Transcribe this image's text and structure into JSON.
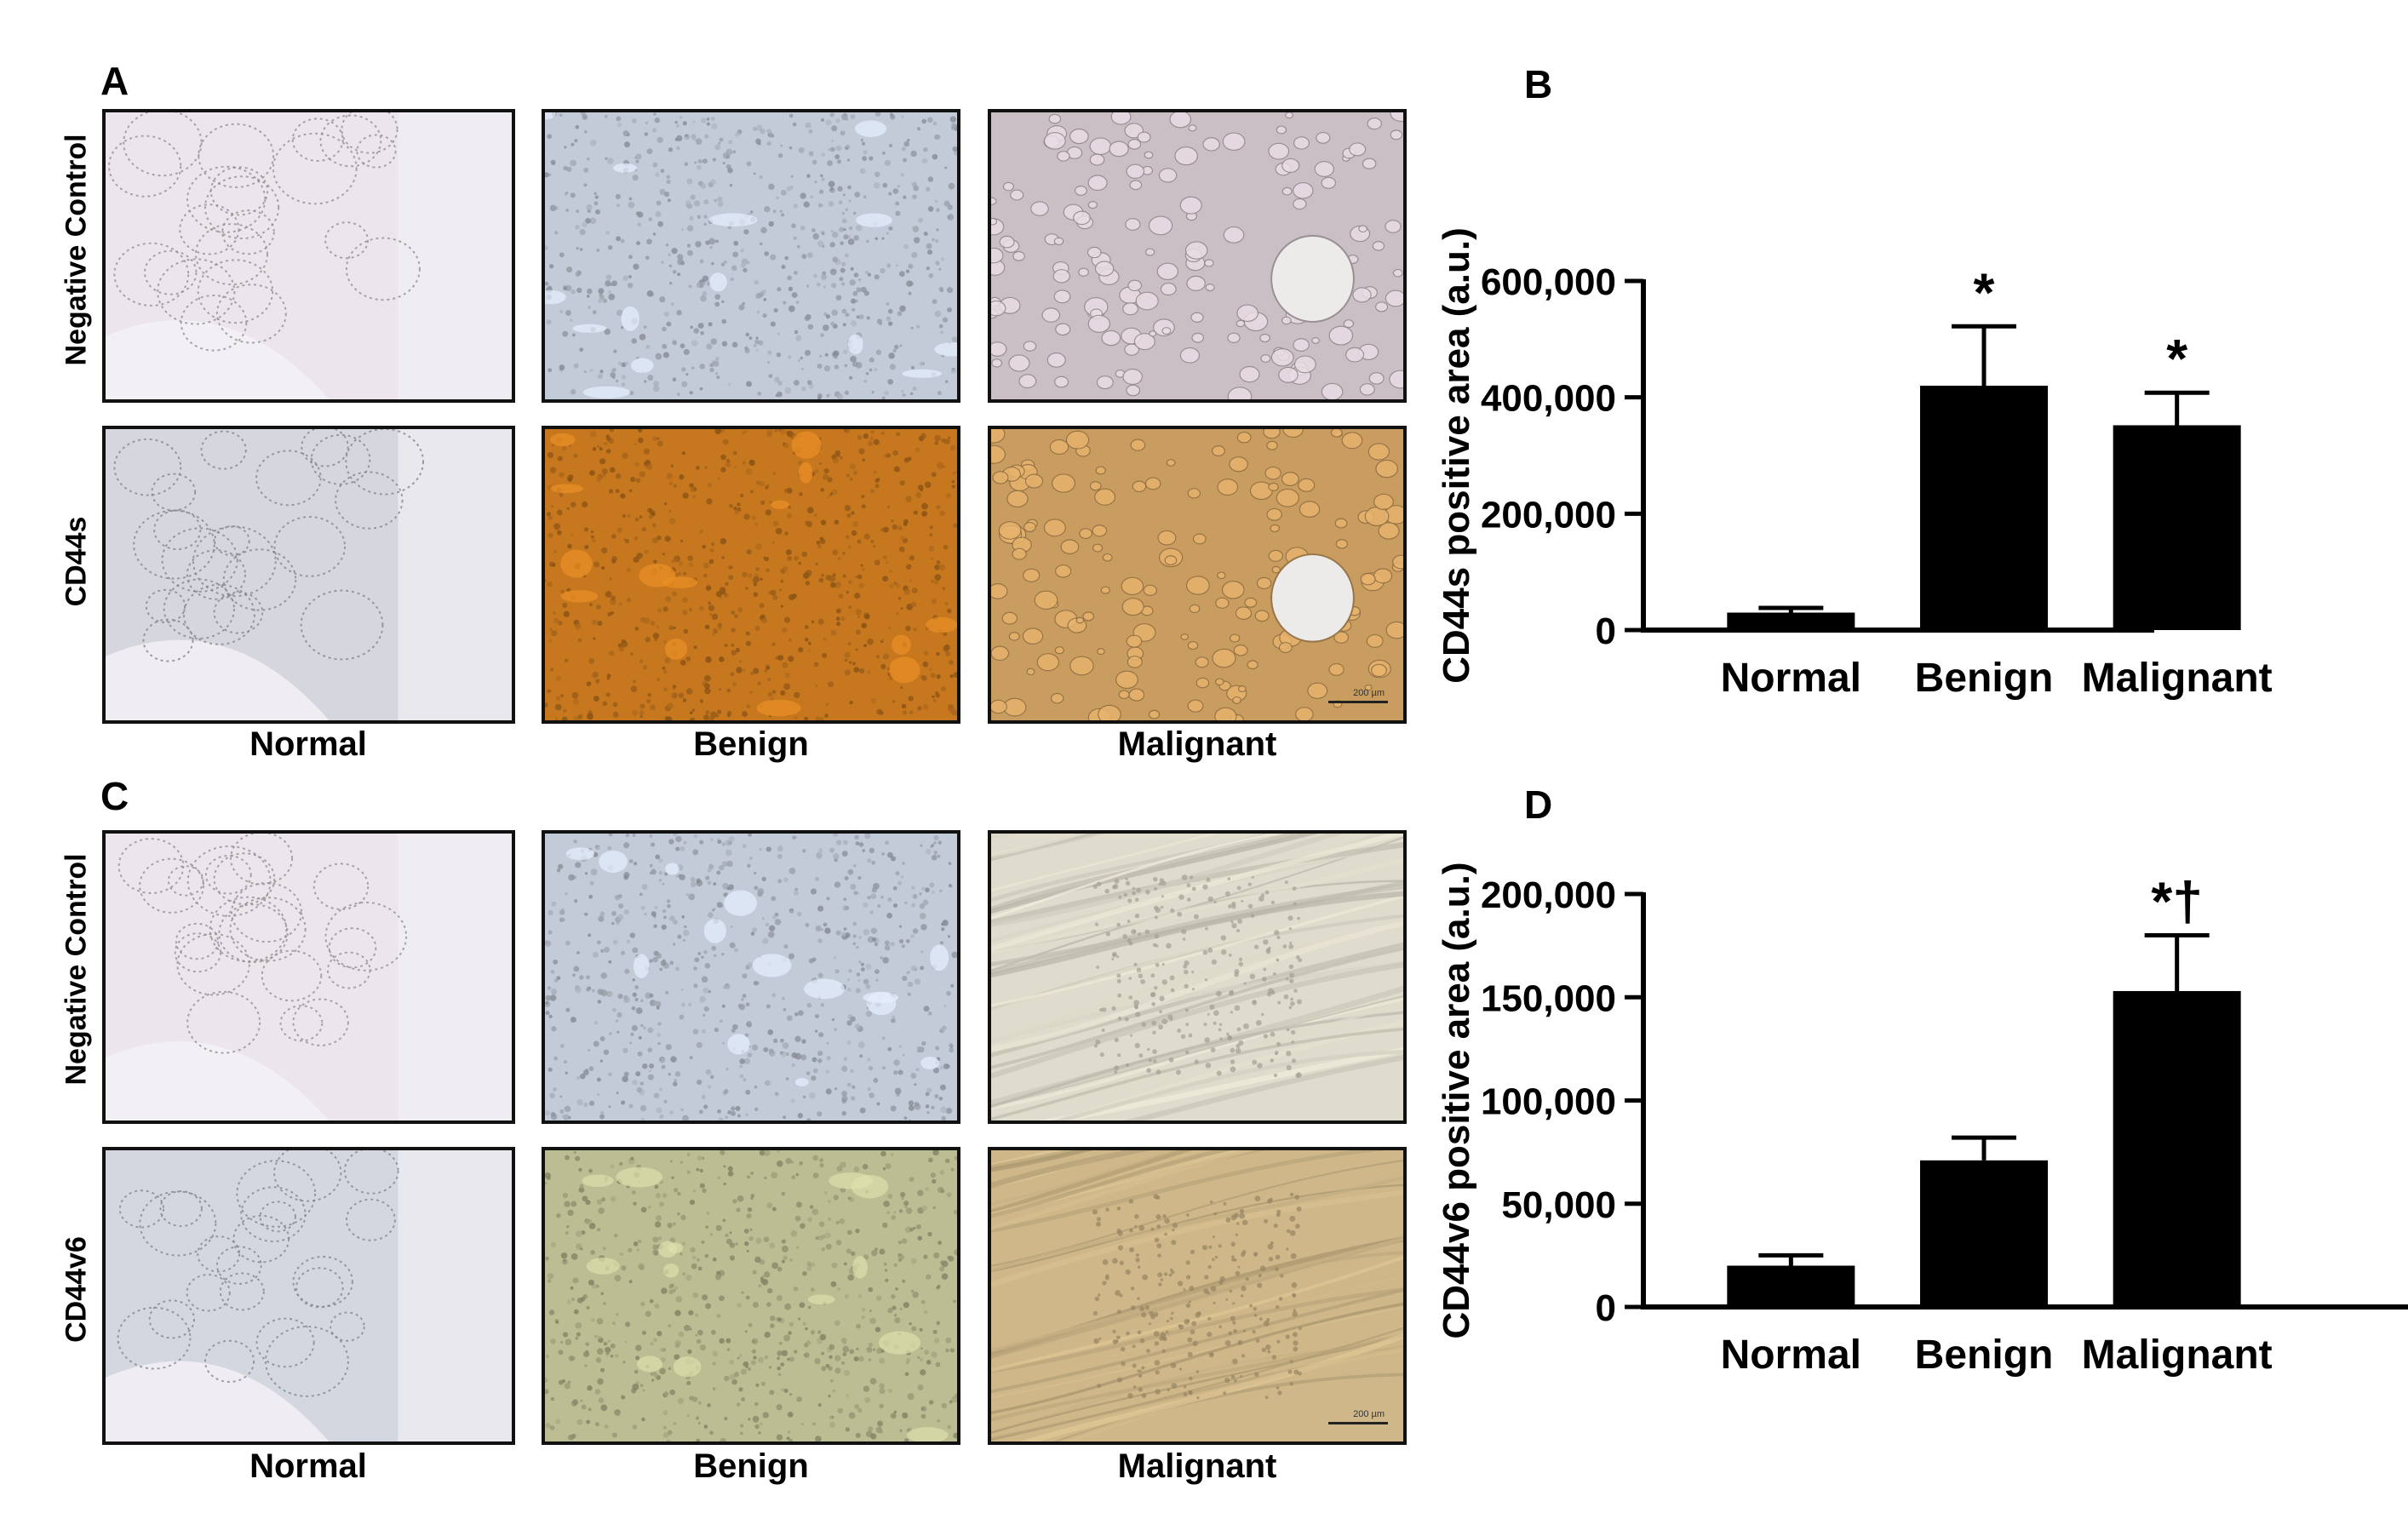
{
  "panels": {
    "A": {
      "letter": "A",
      "row_labels": [
        "Negative Control",
        "CD44s"
      ],
      "col_labels": [
        "Normal",
        "Benign",
        "Malignant"
      ],
      "scale_bar": "200 µm"
    },
    "C": {
      "letter": "C",
      "row_labels": [
        "Negative Control",
        "CD44v6"
      ],
      "col_labels": [
        "Normal",
        "Benign",
        "Malignant"
      ],
      "scale_bar": "200 µm"
    }
  },
  "chart_data": [
    {
      "panel": "B",
      "type": "bar",
      "categories": [
        "Normal",
        "Benign",
        "Malignant"
      ],
      "values": [
        30000,
        420000,
        352000
      ],
      "errors": [
        8000,
        102000,
        56000
      ],
      "annotations": [
        "",
        "*",
        "*"
      ],
      "ylabel": "CD44s positive area (a.u.)",
      "ylim": [
        0,
        600000
      ],
      "yticks": [
        0,
        200000,
        400000,
        600000
      ],
      "ytick_labels": [
        "0",
        "200,000",
        "400,000",
        "600,000"
      ],
      "bar_color": "#000000"
    },
    {
      "panel": "D",
      "type": "bar",
      "categories": [
        "Normal",
        "Benign",
        "Malignant"
      ],
      "values": [
        20000,
        71000,
        153000
      ],
      "errors": [
        5000,
        11000,
        27000
      ],
      "annotations": [
        "",
        "",
        "*†"
      ],
      "ylabel": "CD44v6 positive area (a.u.)",
      "ylim": [
        0,
        200000
      ],
      "yticks": [
        0,
        50000,
        100000,
        150000,
        200000
      ],
      "ytick_labels": [
        "0",
        "50,000",
        "100,000",
        "150,000",
        "200,000"
      ],
      "bar_color": "#000000"
    }
  ],
  "colors": {
    "neg_normal": "#ece6ec",
    "neg_benign": "#c4cbd8",
    "neg_malignant_A": "#cbbfc6",
    "neg_malignant_C": "#e0dccd",
    "cd44s_normal": "#d6d7de",
    "cd44s_benign": "#c7781f",
    "cd44s_malignant": "#c99c5f",
    "cd44v6_normal": "#d3d8e0",
    "cd44v6_benign": "#bcbd92",
    "cd44v6_malignant": "#cfb789"
  }
}
